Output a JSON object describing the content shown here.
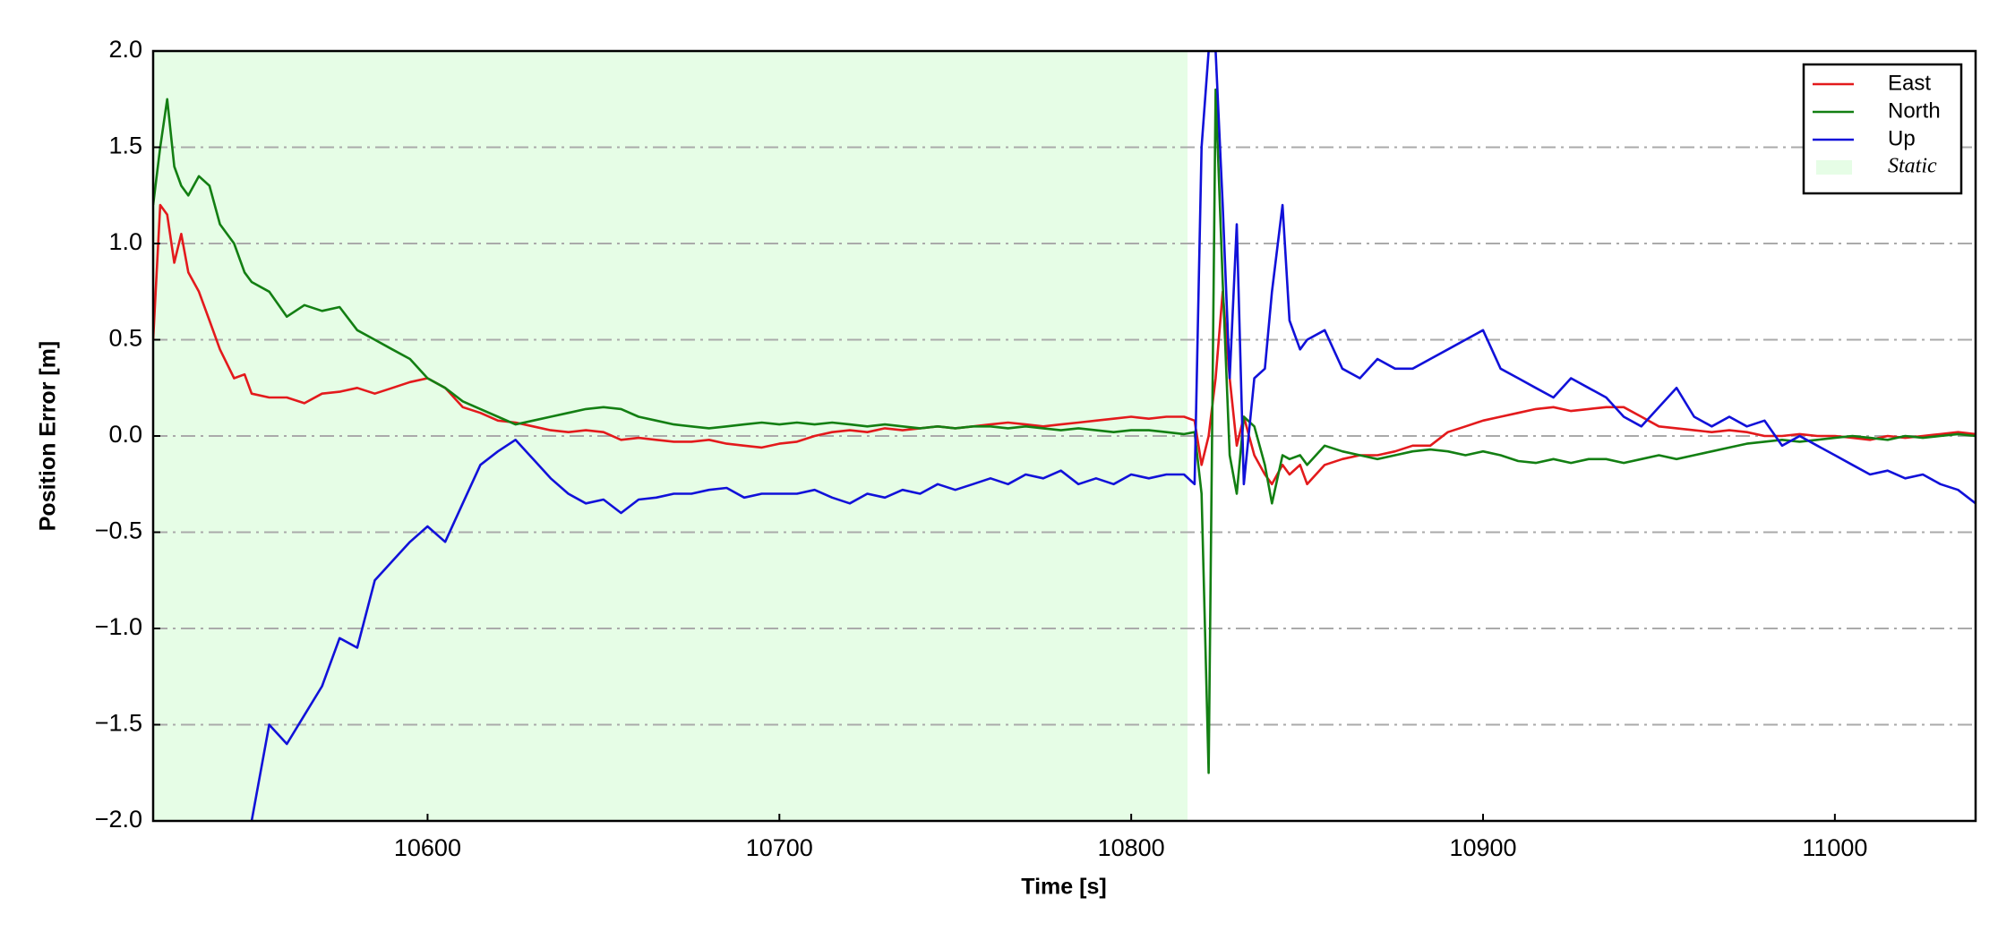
{
  "chart_data": {
    "type": "line",
    "xlabel": "Time [s]",
    "ylabel": "Position Error [m]",
    "xlim": [
      10522,
      11040
    ],
    "ylim": [
      -2,
      2
    ],
    "xticks": [
      10600,
      10700,
      10800,
      10900,
      11000
    ],
    "yticks": [
      {
        "value": -2,
        "label": "−2.0"
      },
      {
        "value": -1.5,
        "label": "−1.5"
      },
      {
        "value": -1,
        "label": "−1.0"
      },
      {
        "value": -0.5,
        "label": "−0.5"
      },
      {
        "value": 0,
        "label": "0.0"
      },
      0.5,
      {
        "value": 1,
        "label": "1.0"
      },
      1.5,
      {
        "value": 2,
        "label": "2.0"
      }
    ],
    "grid": true,
    "legend": "upper right",
    "static": {
      "label": "Static",
      "range": [
        10522,
        10816
      ],
      "color": "#e6fde6"
    },
    "x": [
      10522,
      10524,
      10526,
      10528,
      10530,
      10532,
      10535,
      10538,
      10541,
      10545,
      10548,
      10550,
      10555,
      10560,
      10565,
      10570,
      10575,
      10580,
      10585,
      10590,
      10595,
      10600,
      10605,
      10610,
      10615,
      10620,
      10625,
      10630,
      10635,
      10640,
      10645,
      10650,
      10655,
      10660,
      10665,
      10670,
      10675,
      10680,
      10685,
      10690,
      10695,
      10700,
      10705,
      10710,
      10715,
      10720,
      10725,
      10730,
      10735,
      10740,
      10745,
      10750,
      10755,
      10760,
      10765,
      10770,
      10775,
      10780,
      10785,
      10790,
      10795,
      10800,
      10805,
      10810,
      10815,
      10818,
      10820,
      10822,
      10824,
      10826,
      10828,
      10830,
      10832,
      10835,
      10838,
      10840,
      10843,
      10845,
      10848,
      10850,
      10855,
      10860,
      10865,
      10870,
      10875,
      10880,
      10885,
      10890,
      10895,
      10900,
      10905,
      10910,
      10915,
      10920,
      10925,
      10930,
      10935,
      10940,
      10945,
      10950,
      10955,
      10960,
      10965,
      10970,
      10975,
      10980,
      10985,
      10990,
      10995,
      11000,
      11005,
      11010,
      11015,
      11020,
      11025,
      11030,
      11035,
      11040
    ],
    "series": [
      {
        "name": "East",
        "color": "#e31a1c",
        "values": [
          0.5,
          1.2,
          1.15,
          0.9,
          1.05,
          0.85,
          0.75,
          0.6,
          0.45,
          0.3,
          0.32,
          0.22,
          0.2,
          0.2,
          0.17,
          0.22,
          0.23,
          0.25,
          0.22,
          0.25,
          0.28,
          0.3,
          0.25,
          0.15,
          0.12,
          0.08,
          0.07,
          0.05,
          0.03,
          0.02,
          0.03,
          0.02,
          -0.02,
          -0.01,
          -0.02,
          -0.03,
          -0.03,
          -0.02,
          -0.04,
          -0.05,
          -0.06,
          -0.04,
          -0.03,
          0.0,
          0.02,
          0.03,
          0.02,
          0.04,
          0.03,
          0.04,
          0.05,
          0.04,
          0.05,
          0.06,
          0.07,
          0.06,
          0.05,
          0.06,
          0.07,
          0.08,
          0.09,
          0.1,
          0.09,
          0.1,
          0.1,
          0.08,
          -0.15,
          0.0,
          0.3,
          0.75,
          0.3,
          -0.05,
          0.1,
          -0.1,
          -0.2,
          -0.25,
          -0.15,
          -0.2,
          -0.15,
          -0.25,
          -0.15,
          -0.12,
          -0.1,
          -0.1,
          -0.08,
          -0.05,
          -0.05,
          0.02,
          0.05,
          0.08,
          0.1,
          0.12,
          0.14,
          0.15,
          0.13,
          0.14,
          0.15,
          0.15,
          0.1,
          0.05,
          0.04,
          0.03,
          0.02,
          0.03,
          0.02,
          0.0,
          0.0,
          0.01,
          0.0,
          0.0,
          -0.01,
          -0.02,
          0.0,
          -0.01,
          0.0,
          0.01,
          0.02,
          0.01
        ]
      },
      {
        "name": "North",
        "color": "#137f13",
        "values": [
          1.2,
          1.5,
          1.75,
          1.4,
          1.3,
          1.25,
          1.35,
          1.3,
          1.1,
          1.0,
          0.85,
          0.8,
          0.75,
          0.62,
          0.68,
          0.65,
          0.67,
          0.55,
          0.5,
          0.45,
          0.4,
          0.3,
          0.25,
          0.18,
          0.14,
          0.1,
          0.06,
          0.08,
          0.1,
          0.12,
          0.14,
          0.15,
          0.14,
          0.1,
          0.08,
          0.06,
          0.05,
          0.04,
          0.05,
          0.06,
          0.07,
          0.06,
          0.07,
          0.06,
          0.07,
          0.06,
          0.05,
          0.06,
          0.05,
          0.04,
          0.05,
          0.04,
          0.05,
          0.05,
          0.04,
          0.05,
          0.04,
          0.03,
          0.04,
          0.03,
          0.02,
          0.03,
          0.03,
          0.02,
          0.01,
          0.02,
          -0.3,
          -1.75,
          1.8,
          0.8,
          -0.1,
          -0.3,
          0.1,
          0.05,
          -0.15,
          -0.35,
          -0.1,
          -0.12,
          -0.1,
          -0.15,
          -0.05,
          -0.08,
          -0.1,
          -0.12,
          -0.1,
          -0.08,
          -0.07,
          -0.08,
          -0.1,
          -0.08,
          -0.1,
          -0.13,
          -0.14,
          -0.12,
          -0.14,
          -0.12,
          -0.12,
          -0.14,
          -0.12,
          -0.1,
          -0.12,
          -0.1,
          -0.08,
          -0.06,
          -0.04,
          -0.03,
          -0.02,
          -0.03,
          -0.02,
          -0.01,
          0.0,
          -0.01,
          -0.02,
          0.0,
          -0.01,
          0.0,
          0.01,
          0.0
        ]
      },
      {
        "name": "Up",
        "color": "#1111d9",
        "values": [
          null,
          null,
          null,
          null,
          null,
          null,
          null,
          null,
          null,
          null,
          null,
          -2,
          -1.5,
          -1.6,
          -1.45,
          -1.3,
          -1.05,
          -1.1,
          -0.75,
          -0.65,
          -0.55,
          -0.47,
          -0.55,
          -0.35,
          -0.15,
          -0.08,
          -0.02,
          -0.12,
          -0.22,
          -0.3,
          -0.35,
          -0.33,
          -0.4,
          -0.33,
          -0.32,
          -0.3,
          -0.3,
          -0.28,
          -0.27,
          -0.32,
          -0.3,
          -0.3,
          -0.3,
          -0.28,
          -0.32,
          -0.35,
          -0.3,
          -0.32,
          -0.28,
          -0.3,
          -0.25,
          -0.28,
          -0.25,
          -0.22,
          -0.25,
          -0.2,
          -0.22,
          -0.18,
          -0.25,
          -0.22,
          -0.25,
          -0.2,
          -0.22,
          -0.2,
          -0.2,
          -0.25,
          1.5,
          2.0,
          2.0,
          1.2,
          0.3,
          1.1,
          -0.25,
          0.3,
          0.35,
          0.75,
          1.2,
          0.6,
          0.45,
          0.5,
          0.55,
          0.35,
          0.3,
          0.4,
          0.35,
          0.35,
          0.4,
          0.45,
          0.5,
          0.55,
          0.35,
          0.3,
          0.25,
          0.2,
          0.3,
          0.25,
          0.2,
          0.1,
          0.05,
          0.15,
          0.25,
          0.1,
          0.05,
          0.1,
          0.05,
          0.08,
          -0.05,
          0.0,
          -0.05,
          -0.1,
          -0.15,
          -0.2,
          -0.18,
          -0.22,
          -0.2,
          -0.25,
          -0.28,
          -0.35
        ]
      }
    ]
  }
}
